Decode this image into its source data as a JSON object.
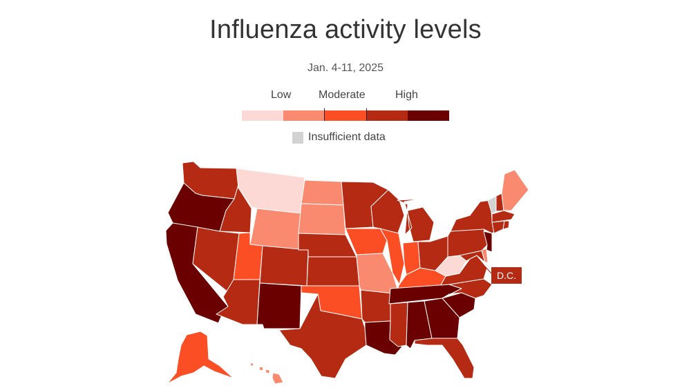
{
  "title": "Influenza activity levels",
  "subtitle": "Jan. 4-11, 2025",
  "legend": {
    "labels": [
      "Low",
      "Moderate",
      "High"
    ],
    "colors": [
      "#fcd9d5",
      "#f98a70",
      "#fb4e24",
      "#b52a12",
      "#6a0000"
    ],
    "insufficient_label": "Insufficient data",
    "insufficient_color": "#d2d2d2"
  },
  "levels": {
    "very-low": "#fcd9d5",
    "low": "#f98a70",
    "moderate": "#fb4e24",
    "high": "#b52a12",
    "very-high": "#6a0000",
    "insufficient": "#d2d2d2"
  },
  "states": {
    "WA": "high",
    "OR": "very-high",
    "CA": "very-high",
    "ID": "high",
    "NV": "high",
    "MT": "very-low",
    "WY": "low",
    "UT": "moderate",
    "AZ": "high",
    "CO": "high",
    "NM": "very-high",
    "ND": "low",
    "SD": "low",
    "NE": "high",
    "KS": "high",
    "OK": "moderate",
    "TX": "high",
    "MN": "high",
    "IA": "moderate",
    "MO": "low",
    "AR": "high",
    "LA": "very-high",
    "WI": "high",
    "IL": "moderate",
    "MI": "high",
    "IN": "moderate",
    "OH": "high",
    "KY": "moderate",
    "TN": "very-high",
    "MS": "high",
    "AL": "very-high",
    "GA": "very-high",
    "FL": "high",
    "SC": "very-high",
    "NC": "high",
    "VA": "high",
    "WV": "very-low",
    "PA": "high",
    "NY": "high",
    "VT": "insufficient",
    "NH": "high",
    "ME": "low",
    "MA": "high",
    "CT": "high",
    "RI": "high",
    "NJ": "very-high",
    "DE": "low",
    "MD": "high",
    "AK": "moderate",
    "HI": "low",
    "DC": "high"
  },
  "dc_label": "D.C."
}
